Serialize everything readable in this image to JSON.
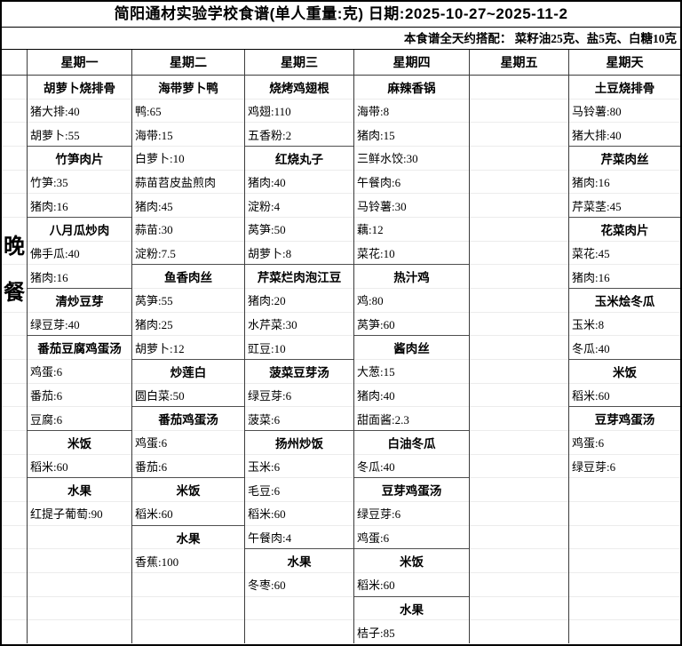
{
  "title": "简阳通材实验学校食谱(单人重量:克) 日期:2025-10-27~2025-11-2",
  "subtitle": "本食谱全天约搭配： 菜籽油25克、盐5克、白糖10克",
  "meal_label": {
    "text": "晚餐",
    "chars": [
      "晚",
      "餐"
    ]
  },
  "colors": {
    "background": "#ffffff",
    "text": "#000000",
    "grid_dark": "#3c3c3c",
    "group_border": "#4f4f4f",
    "grid_light": "#ececec"
  },
  "table": {
    "columns": [
      {
        "day": "星期一",
        "rows": [
          {
            "type": "dish",
            "text": "胡萝卜烧排骨"
          },
          {
            "type": "item",
            "text": "猪大排:40"
          },
          {
            "type": "item",
            "text": "胡萝卜:55"
          },
          {
            "type": "dish",
            "text": "竹笋肉片"
          },
          {
            "type": "item",
            "text": "竹笋:35"
          },
          {
            "type": "item",
            "text": "猪肉:16"
          },
          {
            "type": "dish",
            "text": "八月瓜炒肉"
          },
          {
            "type": "item",
            "text": "佛手瓜:40"
          },
          {
            "type": "item",
            "text": "猪肉:16"
          },
          {
            "type": "dish",
            "text": "清炒豆芽"
          },
          {
            "type": "item",
            "text": "绿豆芽:40"
          },
          {
            "type": "dish",
            "text": "番茄豆腐鸡蛋汤"
          },
          {
            "type": "item",
            "text": "鸡蛋:6"
          },
          {
            "type": "item",
            "text": "番茄:6"
          },
          {
            "type": "item",
            "text": "豆腐:6"
          },
          {
            "type": "dish",
            "text": "米饭"
          },
          {
            "type": "item",
            "text": "稻米:60"
          },
          {
            "type": "dish",
            "text": "水果"
          },
          {
            "type": "item",
            "text": "红提子葡萄:90"
          }
        ]
      },
      {
        "day": "星期二",
        "rows": [
          {
            "type": "dish",
            "text": "海带萝卜鸭"
          },
          {
            "type": "item",
            "text": "鸭:65"
          },
          {
            "type": "item",
            "text": "海带:15"
          },
          {
            "type": "item",
            "text": "白萝卜:10"
          },
          {
            "type": "item",
            "text": "蒜苗苕皮盐煎肉"
          },
          {
            "type": "item",
            "text": "猪肉:45"
          },
          {
            "type": "item",
            "text": "蒜苗:30"
          },
          {
            "type": "item",
            "text": "淀粉:7.5"
          },
          {
            "type": "dish",
            "text": "鱼香肉丝"
          },
          {
            "type": "item",
            "text": "莴笋:55"
          },
          {
            "type": "item",
            "text": "猪肉:25"
          },
          {
            "type": "item",
            "text": "胡萝卜:12"
          },
          {
            "type": "dish",
            "text": "炒莲白"
          },
          {
            "type": "item",
            "text": "圆白菜:50"
          },
          {
            "type": "dish",
            "text": "番茄鸡蛋汤"
          },
          {
            "type": "item",
            "text": "鸡蛋:6"
          },
          {
            "type": "item",
            "text": "番茄:6"
          },
          {
            "type": "dish",
            "text": "米饭"
          },
          {
            "type": "item",
            "text": "稻米:60"
          },
          {
            "type": "dish",
            "text": "水果"
          },
          {
            "type": "item",
            "text": "香蕉:100"
          }
        ]
      },
      {
        "day": "星期三",
        "rows": [
          {
            "type": "dish",
            "text": "烧烤鸡翅根"
          },
          {
            "type": "item",
            "text": "鸡翅:110"
          },
          {
            "type": "item",
            "text": "五香粉:2"
          },
          {
            "type": "dish",
            "text": "红烧丸子"
          },
          {
            "type": "item",
            "text": "猪肉:40"
          },
          {
            "type": "item",
            "text": "淀粉:4"
          },
          {
            "type": "item",
            "text": "莴笋:50"
          },
          {
            "type": "item",
            "text": "胡萝卜:8"
          },
          {
            "type": "dish",
            "text": "芹菜烂肉泡江豆"
          },
          {
            "type": "item",
            "text": "猪肉:20"
          },
          {
            "type": "item",
            "text": "水芹菜:30"
          },
          {
            "type": "item",
            "text": "豇豆:10"
          },
          {
            "type": "dish",
            "text": "菠菜豆芽汤"
          },
          {
            "type": "item",
            "text": "绿豆芽:6"
          },
          {
            "type": "item",
            "text": "菠菜:6"
          },
          {
            "type": "dish",
            "text": "扬州炒饭"
          },
          {
            "type": "item",
            "text": "玉米:6"
          },
          {
            "type": "item",
            "text": "毛豆:6"
          },
          {
            "type": "item",
            "text": "稻米:60"
          },
          {
            "type": "item",
            "text": "午餐肉:4"
          },
          {
            "type": "dish",
            "text": "水果"
          },
          {
            "type": "item",
            "text": "冬枣:60"
          }
        ]
      },
      {
        "day": "星期四",
        "rows": [
          {
            "type": "dish",
            "text": "麻辣香锅"
          },
          {
            "type": "item",
            "text": "海带:8"
          },
          {
            "type": "item",
            "text": "猪肉:15"
          },
          {
            "type": "item",
            "text": "三鲜水饺:30"
          },
          {
            "type": "item",
            "text": "午餐肉:6"
          },
          {
            "type": "item",
            "text": "马铃薯:30"
          },
          {
            "type": "item",
            "text": "藕:12"
          },
          {
            "type": "item",
            "text": "菜花:10"
          },
          {
            "type": "dish",
            "text": "热汁鸡"
          },
          {
            "type": "item",
            "text": "鸡:80"
          },
          {
            "type": "item",
            "text": "莴笋:60"
          },
          {
            "type": "dish",
            "text": "酱肉丝"
          },
          {
            "type": "item",
            "text": "大葱:15"
          },
          {
            "type": "item",
            "text": "猪肉:40"
          },
          {
            "type": "item",
            "text": "甜面酱:2.3"
          },
          {
            "type": "dish",
            "text": "白油冬瓜"
          },
          {
            "type": "item",
            "text": "冬瓜:40"
          },
          {
            "type": "dish",
            "text": "豆芽鸡蛋汤"
          },
          {
            "type": "item",
            "text": "绿豆芽:6"
          },
          {
            "type": "item",
            "text": "鸡蛋:6"
          },
          {
            "type": "dish",
            "text": "米饭"
          },
          {
            "type": "item",
            "text": "稻米:60"
          },
          {
            "type": "dish",
            "text": "水果"
          },
          {
            "type": "item",
            "text": "桔子:85"
          }
        ]
      },
      {
        "day": "星期五",
        "rows": []
      },
      {
        "day": "星期天",
        "rows": [
          {
            "type": "dish",
            "text": "土豆烧排骨"
          },
          {
            "type": "item",
            "text": "马铃薯:80"
          },
          {
            "type": "item",
            "text": "猪大排:40"
          },
          {
            "type": "dish",
            "text": "芹菜肉丝"
          },
          {
            "type": "item",
            "text": "猪肉:16"
          },
          {
            "type": "item",
            "text": "芹菜茎:45"
          },
          {
            "type": "dish",
            "text": "花菜肉片"
          },
          {
            "type": "item",
            "text": "菜花:45"
          },
          {
            "type": "item",
            "text": "猪肉:16"
          },
          {
            "type": "dish",
            "text": "玉米烩冬瓜"
          },
          {
            "type": "item",
            "text": "玉米:8"
          },
          {
            "type": "item",
            "text": "冬瓜:40"
          },
          {
            "type": "dish",
            "text": "米饭"
          },
          {
            "type": "item",
            "text": "稻米:60"
          },
          {
            "type": "dish",
            "text": "豆芽鸡蛋汤"
          },
          {
            "type": "item",
            "text": "鸡蛋:6"
          },
          {
            "type": "item",
            "text": "绿豆芽:6"
          }
        ]
      }
    ]
  }
}
